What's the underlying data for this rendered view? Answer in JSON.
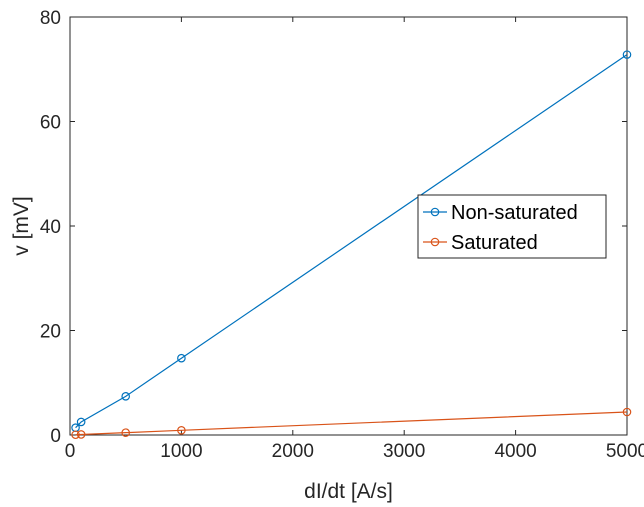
{
  "chart_data": {
    "type": "line",
    "xlabel": "dI/dt [A/s]",
    "ylabel": "v [mV]",
    "xlim": [
      0,
      5000
    ],
    "ylim": [
      0,
      80
    ],
    "xticks": [
      0,
      1000,
      2000,
      3000,
      4000,
      5000
    ],
    "yticks": [
      0,
      20,
      40,
      60,
      80
    ],
    "grid": false,
    "legend_position": "right",
    "series": [
      {
        "name": "Non-saturated",
        "color": "#0072BD",
        "marker": "circle",
        "x": [
          50,
          100,
          500,
          1000,
          5000
        ],
        "y": [
          1.4,
          2.5,
          7.4,
          14.7,
          72.8
        ]
      },
      {
        "name": "Saturated",
        "color": "#D95319",
        "marker": "circle",
        "x": [
          50,
          100,
          500,
          1000,
          5000
        ],
        "y": [
          0.05,
          0.1,
          0.45,
          0.9,
          4.4
        ]
      }
    ]
  }
}
